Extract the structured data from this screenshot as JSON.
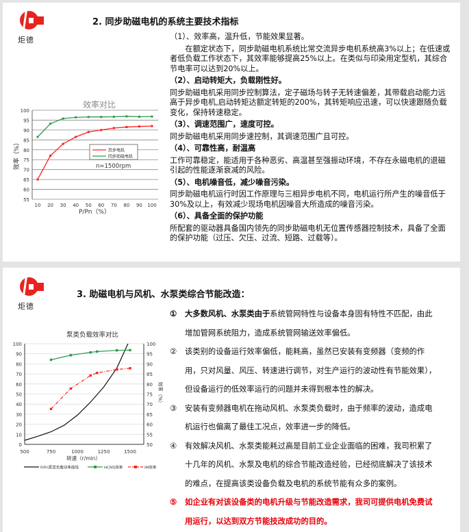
{
  "logo_text": "炬德",
  "slide1": {
    "title": "2. 同步助磁电机的系统主要技术指标",
    "sections": [
      {
        "heading": "（1）、效率高，温升低，节能效果显著。",
        "body": "在额定状态下，同步助磁电机系统比常交流异步电机系统高3%以上；在低速或者低负载工作状态下，其效率能够提高25%以上。在类似与印染用定型机，其综合节电率可以达到20%以上。"
      },
      {
        "heading": "（2）、启动转矩大，负载刚性好。",
        "body": "同步助磁电机采用同步控制算法，定子磁场与转子无转速偏差，其带载启动能力远高于异步电机,启动转矩达额定转矩的200%，其转矩响应迅速，可以快速跟随负载变化，保持转速稳定。"
      },
      {
        "heading": "（3）、调速范围广，速度可控。",
        "body": "同步助磁电机采用同步速控制，其调速范围广且可控。"
      },
      {
        "heading": "（4）、可靠性高，耐温高",
        "body": "工作可靠稳定，能适用于各种恶劣、高温甚至强振动环境，不存在永磁电机的退磁引起的性能逐渐衰减的风险。"
      },
      {
        "heading": "（5）、电机噪音低，减少噪音污染。",
        "body": "同步助磁电机运行时因工作原理与三相异步电机不同，电机运行所产生的噪音低于30%及以上，有效减少现场电机因噪音大所造成的噪音污染。"
      },
      {
        "heading": "（6）、具备全面的保护功能",
        "body": "所配套的驱动器具备国内领先的同步助磁电机无位置传感器控制技术，具备了全面的保护功能（过压、欠压、过流、短路、过载等）。"
      }
    ]
  },
  "slide2": {
    "title": "3. 助磁电机与风机、水泵类综合节能改造：",
    "items": [
      {
        "num": "①",
        "bold": "大多数风机、水泵类由于",
        "text": "系统管网特性与设备本身固有特性不匹配，由此增加管网系统阻力，造成系统管网输送效率偏低。"
      },
      {
        "num": "②",
        "bold": "",
        "text": "该类别的设备运行效率偏低，能耗高，虽然已安装有变频器（变频的作用，只对风量、风压、转速进行调节，对生产运行的波动性有节能效果），但设备运行的低效率运行的问题并未得到根本性的解决。"
      },
      {
        "num": "③",
        "bold": "",
        "text": "安装有变频器电机在拖动风机、水泵类负载时，由于频率的波动，造成电机运行也偏离了最佳工况点，效率进一步的降低。"
      },
      {
        "num": "④",
        "bold": "",
        "text": "有效解决风机、水泵类能耗过高是目前工业企业面临的困难，我司积累了十几年的风机、水泵及电机的综合节能改造经验，已经彻底解决了该技术的难点，在提高该类设备负载及电机的系统节能有众多的案例。"
      },
      {
        "num": "⑤",
        "bold": "",
        "text": "如企业有对该设备类的电机升级与节能改造需求，我司可提供电机免费试用运行，以达到双方节能技改成功的目的。",
        "highlight": true
      }
    ]
  },
  "colors": {
    "red": "#ff2020",
    "green": "#2e9a4e",
    "highlight_text": "#e8000a",
    "logo": "#e8231f"
  },
  "chart_data": [
    {
      "type": "line",
      "title": "效率对比",
      "xlabel": "P/Pn（%）",
      "ylabel": "效率（%）",
      "x": [
        10,
        20,
        30,
        40,
        50,
        60,
        70,
        80,
        90,
        100
      ],
      "ylim": [
        55,
        100
      ],
      "yticks": [
        55,
        60,
        65,
        70,
        75,
        80,
        85,
        90,
        95,
        100
      ],
      "grid": true,
      "legend": "center-right",
      "annotation": "n=1500rpm",
      "series": [
        {
          "name": "异步电机",
          "color": "#ff2020",
          "values": [
            65,
            77,
            83,
            86.5,
            89,
            90,
            91,
            91.5,
            91.8,
            92
          ]
        },
        {
          "name": "同步助磁电机",
          "color": "#2e9a4e",
          "values": [
            86.5,
            93.2,
            95.8,
            96.4,
            96.6,
            96.6,
            96.7,
            96.9,
            96.7,
            96.8
          ]
        }
      ]
    },
    {
      "type": "line",
      "title": "泵类负载效率对比",
      "xlabel": "转速（r/min）",
      "ylabel_right": "效率（%）",
      "xlim": [
        500,
        1625
      ],
      "xticks": [
        500,
        750,
        1000,
        1250,
        1500
      ],
      "ylim_left": [
        0,
        100
      ],
      "yticks_left": [
        0,
        10,
        20,
        30,
        40,
        50,
        60,
        70,
        80,
        90,
        100
      ],
      "ylim_right": [
        50,
        100
      ],
      "yticks_right": [
        50,
        55,
        60,
        65,
        70,
        75,
        80,
        85,
        90,
        95,
        100
      ],
      "grid": true,
      "legend": "bottom",
      "series": [
        {
          "name": "P/Pn泵类负载功率曲线",
          "axis": "left",
          "color": "#111111",
          "x": [
            500,
            625,
            750,
            875,
            1000,
            1125,
            1250,
            1375,
            1480
          ],
          "values": [
            4,
            8,
            12.5,
            19,
            29,
            42,
            57,
            76,
            100
          ]
        },
        {
          "name": "HCMS效率",
          "axis": "right",
          "color": "#2e9a4e",
          "x": [
            750,
            937,
            1125,
            1187,
            1375,
            1500
          ],
          "values": [
            92,
            94.3,
            95.7,
            96.1,
            96.7,
            96.8
          ]
        },
        {
          "name": "IM效率",
          "axis": "right",
          "color": "#ff2020",
          "x": [
            750,
            937,
            1125,
            1187,
            1375,
            1500
          ],
          "values": [
            67.6,
            77.7,
            84.2,
            85.5,
            87.2,
            87.8
          ]
        }
      ]
    }
  ]
}
